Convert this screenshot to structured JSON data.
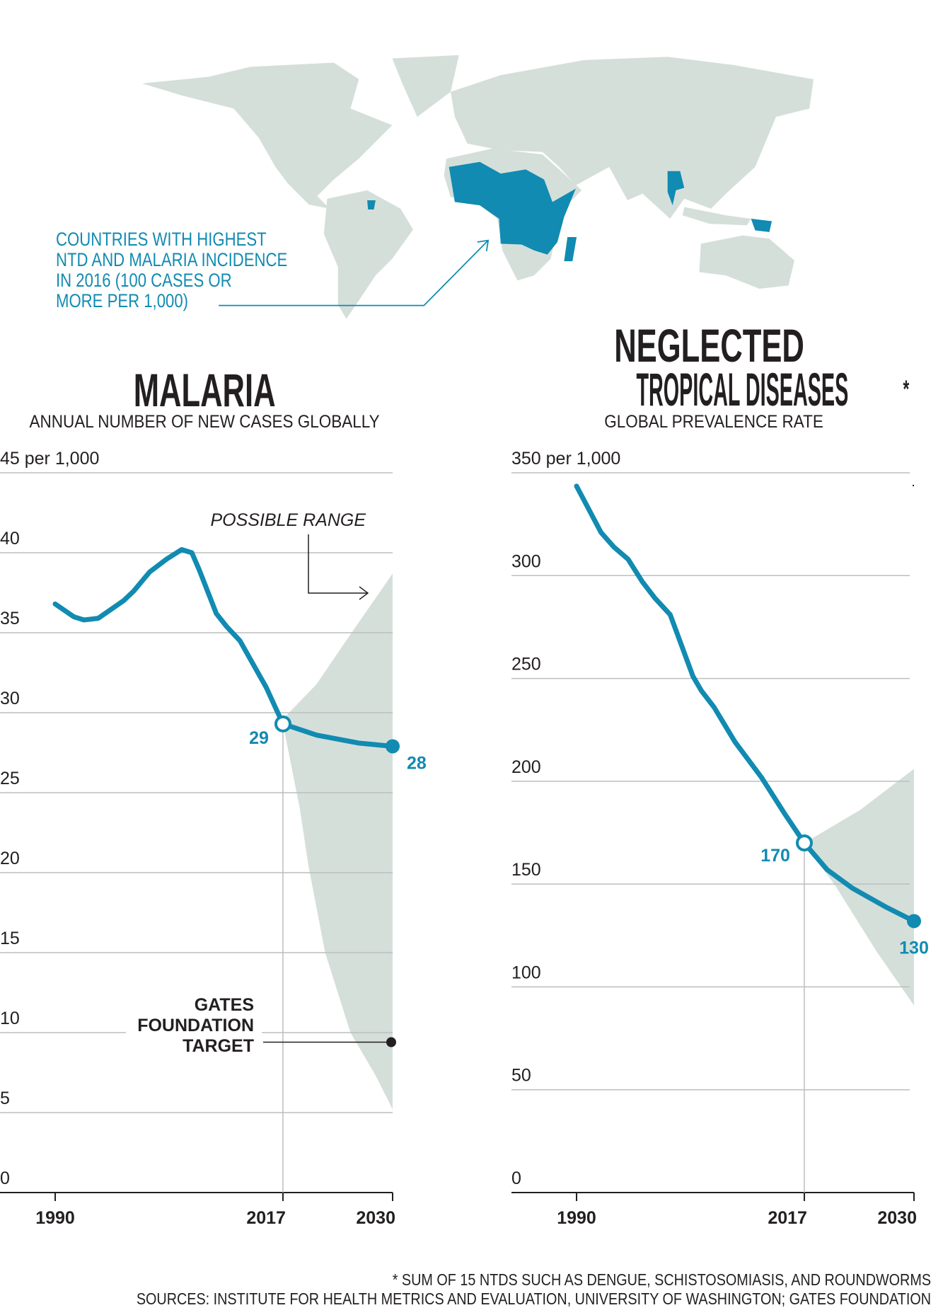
{
  "map": {
    "legend_text": [
      "COUNTRIES WITH HIGHEST",
      "NTD AND MALARIA INCIDENCE",
      "IN 2016 (100 CASES OR",
      "MORE PER 1,000)"
    ],
    "land_color": "#d5dfda",
    "highlight_color": "#118bb1"
  },
  "colors": {
    "series": "#118bb1",
    "range": "#d5dfda",
    "grid": "#bcbec0",
    "text": "#231f20"
  },
  "chart_data": [
    {
      "type": "line",
      "title": "MALARIA",
      "subtitle": "ANNUAL NUMBER OF NEW CASES GLOBALLY",
      "ylabel_top": "45 per 1,000",
      "ylim": [
        0,
        45
      ],
      "xlim": [
        1990,
        2030
      ],
      "y_ticks": [
        0,
        5,
        10,
        15,
        20,
        25,
        30,
        35,
        40,
        45
      ],
      "y_tick_labels": [
        "0",
        "5",
        "10",
        "15",
        "20",
        "25",
        "30",
        "35",
        "40",
        "45 per 1,000"
      ],
      "x_ticks": [
        1990,
        2017,
        2030
      ],
      "x_tick_labels": [
        "1990",
        "2017",
        "2030"
      ],
      "grid": true,
      "historical": {
        "x": [
          1990,
          1992.2,
          1993.4,
          1995.1,
          1998.1,
          1999.3,
          2001.2,
          2003.2,
          2005,
          2006.2,
          2007.1,
          2009.1,
          2010.3,
          2011.9,
          2013.5,
          2015,
          2017
        ],
        "y": [
          36.8,
          36.0,
          35.8,
          35.9,
          37.0,
          37.6,
          38.8,
          39.6,
          40.2,
          40.0,
          38.9,
          36.2,
          35.4,
          34.5,
          33.0,
          31.6,
          29.3
        ]
      },
      "projection": {
        "x": [
          2017,
          2021,
          2023,
          2026,
          2030
        ],
        "y": [
          29.3,
          28.6,
          28.4,
          28.1,
          27.9
        ]
      },
      "range_upper": {
        "x": [
          2017,
          2021,
          2025,
          2030
        ],
        "y": [
          29.6,
          31.8,
          34.9,
          38.7
        ]
      },
      "range_lower": {
        "x": [
          2017,
          2019,
          2020,
          2022,
          2025,
          2028,
          2030
        ],
        "y": [
          29.3,
          24,
          20.5,
          15,
          10,
          7.3,
          5.2
        ]
      },
      "range_label": "POSSIBLE RANGE",
      "point_labels": [
        {
          "x": 2017,
          "y": 29.3,
          "text": "29"
        },
        {
          "x": 2030,
          "y": 27.9,
          "text": "28"
        }
      ],
      "target": {
        "x": 2030,
        "y": 9.4,
        "label": [
          "GATES",
          "FOUNDATION",
          "TARGET"
        ]
      }
    },
    {
      "type": "line",
      "title": [
        "NEGLECTED",
        "TROPICAL DISEASES"
      ],
      "title_mark": "*",
      "subtitle": "GLOBAL PREVALENCE RATE",
      "ylabel_top": "350 per 1,000",
      "ylim": [
        0,
        350
      ],
      "xlim": [
        1990,
        2030
      ],
      "y_ticks": [
        0,
        50,
        100,
        150,
        200,
        250,
        300,
        350
      ],
      "y_tick_labels": [
        "0",
        "50",
        "100",
        "150",
        "200",
        "250",
        "300",
        "350 per 1,000"
      ],
      "x_ticks": [
        1990,
        2017,
        2030
      ],
      "x_tick_labels": [
        "1990",
        "2017",
        "2030"
      ],
      "grid": true,
      "historical": {
        "x": [
          1990,
          1992.9,
          1994.4,
          1996.1,
          1997.8,
          1999.3,
          2001.1,
          2003.8,
          2004.8,
          2006.3,
          2008.8,
          2011.9,
          2014.7,
          2017
        ],
        "y": [
          343.5,
          321,
          314,
          308,
          297,
          289,
          281,
          251,
          244,
          236,
          219,
          202,
          184,
          170
        ]
      },
      "projection": {
        "x": [
          2017,
          2019.7,
          2022.7,
          2026.6,
          2030
        ],
        "y": [
          170,
          157,
          148,
          139,
          132
        ]
      },
      "range_upper": {
        "x": [
          2017,
          2023.6,
          2030
        ],
        "y": [
          170,
          186,
          206
        ]
      },
      "range_lower": {
        "x": [
          2017,
          2020.7,
          2025.6,
          2030
        ],
        "y": [
          170,
          149,
          117,
          91
        ]
      },
      "point_labels": [
        {
          "x": 2017,
          "y": 170,
          "text": "170"
        },
        {
          "x": 2030,
          "y": 132,
          "text": "130"
        }
      ]
    }
  ],
  "footer": {
    "note": "* SUM OF 15 NTDS SUCH AS DENGUE, SCHISTOSOMIASIS, AND ROUNDWORMS",
    "sources": "SOURCES: INSTITUTE FOR HEALTH METRICS AND EVALUATION, UNIVERSITY OF WASHINGTON; GATES FOUNDATION"
  }
}
